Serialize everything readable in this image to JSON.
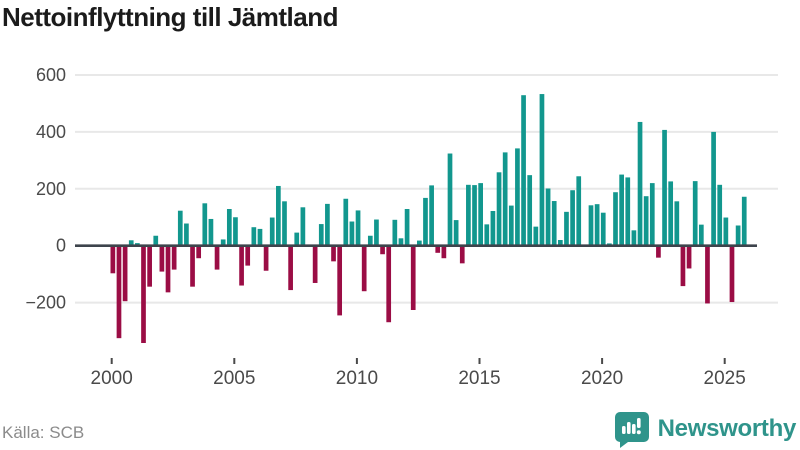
{
  "title": "Nettoinflyttning till Jämtland",
  "source": "Källa: SCB",
  "brand": {
    "name": "Newsworthy",
    "color": "#2f948b"
  },
  "colors": {
    "positive_bar": "#12978e",
    "negative_bar": "#9b0d45",
    "gridline": "#e8e8e8",
    "zero_line": "#3d444c",
    "axis_text": "#4a4a4a",
    "title_text": "#1b1b1b",
    "source_text": "#8b8b8b"
  },
  "chart_data": {
    "type": "bar",
    "title": "Nettoinflyttning till Jämtland",
    "x_unit": "quarter",
    "start_year": 2000,
    "quarters_per_year": 4,
    "values": [
      -97,
      -325,
      -195,
      19,
      9,
      -342,
      -144,
      35,
      -91,
      -164,
      -84,
      123,
      78,
      -144,
      -44,
      149,
      94,
      -84,
      22,
      129,
      100,
      -140,
      -70,
      65,
      59,
      -88,
      99,
      210,
      156,
      -156,
      46,
      135,
      4,
      -131,
      76,
      147,
      -55,
      -245,
      165,
      85,
      124,
      -160,
      35,
      92,
      -30,
      -269,
      91,
      26,
      129,
      -226,
      18,
      168,
      212,
      -25,
      -44,
      324,
      90,
      -62,
      214,
      213,
      220,
      75,
      122,
      258,
      328,
      141,
      342,
      529,
      248,
      67,
      533,
      201,
      157,
      20,
      119,
      195,
      244,
      4,
      142,
      146,
      116,
      8,
      188,
      250,
      240,
      54,
      435,
      174,
      220,
      -42,
      407,
      226,
      156,
      -142,
      -80,
      227,
      74,
      -203,
      400,
      214,
      99,
      -198,
      71,
      172
    ],
    "x_tick_labels": [
      "2000",
      "2005",
      "2010",
      "2015",
      "2020",
      "2025"
    ],
    "y_tick_values": [
      600,
      400,
      200,
      0,
      -200
    ],
    "y_tick_labels": [
      "600",
      "400",
      "200",
      "0",
      "−200"
    ],
    "ylim": [
      -400,
      650
    ],
    "grid": true,
    "legend": false
  }
}
